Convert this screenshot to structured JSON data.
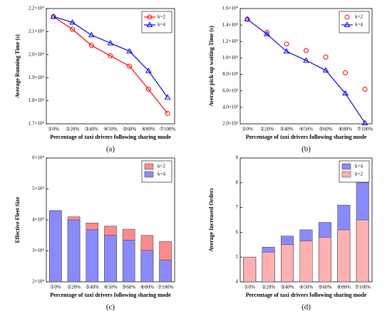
{
  "chart_data": [
    {
      "type": "line",
      "caption": "(a)",
      "xlabel": "Percentage of taxi drivers following sharing mode",
      "ylabel": "Average Running Time (s)",
      "categories": [
        "①0%",
        "②20%",
        "③40%",
        "④50%",
        "⑤60%",
        "⑥80%",
        "⑦100%"
      ],
      "series": [
        {
          "name": "k=2",
          "color": "#ff0000",
          "marker": "circle",
          "line": true,
          "values": [
            21650,
            21100,
            20400,
            19950,
            19500,
            18500,
            17450
          ]
        },
        {
          "name": "k=4",
          "color": "#0000ff",
          "marker": "triangle",
          "line": true,
          "values": [
            21650,
            21400,
            20850,
            20500,
            20150,
            19300,
            18150
          ]
        }
      ],
      "ylim": [
        17000,
        22000
      ],
      "yticks": [
        {
          "value": 17000,
          "label": "1.7×10⁴"
        },
        {
          "value": 18000,
          "label": "1.8×10⁴"
        },
        {
          "value": 19000,
          "label": "1.9×10⁴"
        },
        {
          "value": 20000,
          "label": "2.0×10⁴"
        },
        {
          "value": 21000,
          "label": "2.1×10⁴"
        },
        {
          "value": 22000,
          "label": "2.2×10⁴"
        }
      ],
      "legend": "upper right"
    },
    {
      "type": "line",
      "caption": "(b)",
      "xlabel": "Percentage of taxi drivers following sharing mode",
      "ylabel": "Average pick-up waiting Time (s)",
      "categories": [
        "①0%",
        "②20%",
        "③40%",
        "④50%",
        "⑤60%",
        "⑥80%",
        "⑦100%"
      ],
      "series": [
        {
          "name": "k=2",
          "color": "#ff0000",
          "marker": "circle",
          "line": false,
          "values": [
            14700,
            13100,
            11700,
            10900,
            10100,
            8200,
            6200
          ]
        },
        {
          "name": "k=4",
          "color": "#0000ff",
          "marker": "triangle",
          "line": true,
          "values": [
            14700,
            12900,
            10800,
            9700,
            8500,
            5700,
            2100
          ]
        }
      ],
      "ylim": [
        2000,
        16000
      ],
      "yticks": [
        {
          "value": 2000,
          "label": "2.0×10³"
        },
        {
          "value": 4000,
          "label": "4.0×10³"
        },
        {
          "value": 6000,
          "label": "6.0×10³"
        },
        {
          "value": 8000,
          "label": "8.0×10³"
        },
        {
          "value": 10000,
          "label": "1.0×10⁴"
        },
        {
          "value": 12000,
          "label": "1.2×10⁴"
        },
        {
          "value": 14000,
          "label": "1.4×10⁴"
        },
        {
          "value": 16000,
          "label": "1.6×10⁴"
        }
      ],
      "legend": "upper right"
    },
    {
      "type": "bar",
      "caption": "(c)",
      "xlabel": "Percentage of taxi drivers following sharing mode",
      "ylabel": "Effective Fleet Size",
      "categories": [
        "①0%",
        "②20%",
        "③40%",
        "④50%",
        "⑤60%",
        "⑥80%",
        "⑦100%"
      ],
      "series": [
        {
          "name": "k=2",
          "color": "#ff8a8a",
          "values": [
            43000,
            41000,
            39000,
            38000,
            37000,
            35000,
            33000
          ]
        },
        {
          "name": "k=4",
          "color": "#8a8aff",
          "values": [
            43000,
            40000,
            36800,
            35000,
            33500,
            30200,
            27000
          ]
        }
      ],
      "ylim": [
        20000,
        60000
      ],
      "yticks": [
        {
          "value": 20000,
          "label": "2×10⁴"
        },
        {
          "value": 30000,
          "label": "3×10⁴"
        },
        {
          "value": 40000,
          "label": "4×10⁴"
        },
        {
          "value": 50000,
          "label": "5×10⁴"
        },
        {
          "value": 60000,
          "label": "6×10⁴"
        }
      ],
      "legend": "upper right"
    },
    {
      "type": "bar",
      "caption": "(d)",
      "xlabel": "Percentage of taxi drivers following sharing mode",
      "ylabel": "Average Increased Orders",
      "categories": [
        "①0%",
        "②20%",
        "③40%",
        "④50%",
        "⑤60%",
        "⑥80%",
        "⑦100%"
      ],
      "series": [
        {
          "name": "k=4",
          "color": "#8a8aff",
          "values": [
            5.0,
            5.4,
            5.85,
            6.1,
            6.4,
            7.1,
            8.0
          ]
        },
        {
          "name": "k=2",
          "color": "#ffb0b0",
          "values": [
            5.0,
            5.2,
            5.5,
            5.65,
            5.8,
            6.1,
            6.5
          ]
        }
      ],
      "ylim": [
        4,
        9
      ],
      "yticks": [
        4,
        5,
        6,
        7,
        8,
        9
      ],
      "legend": "upper right"
    }
  ]
}
